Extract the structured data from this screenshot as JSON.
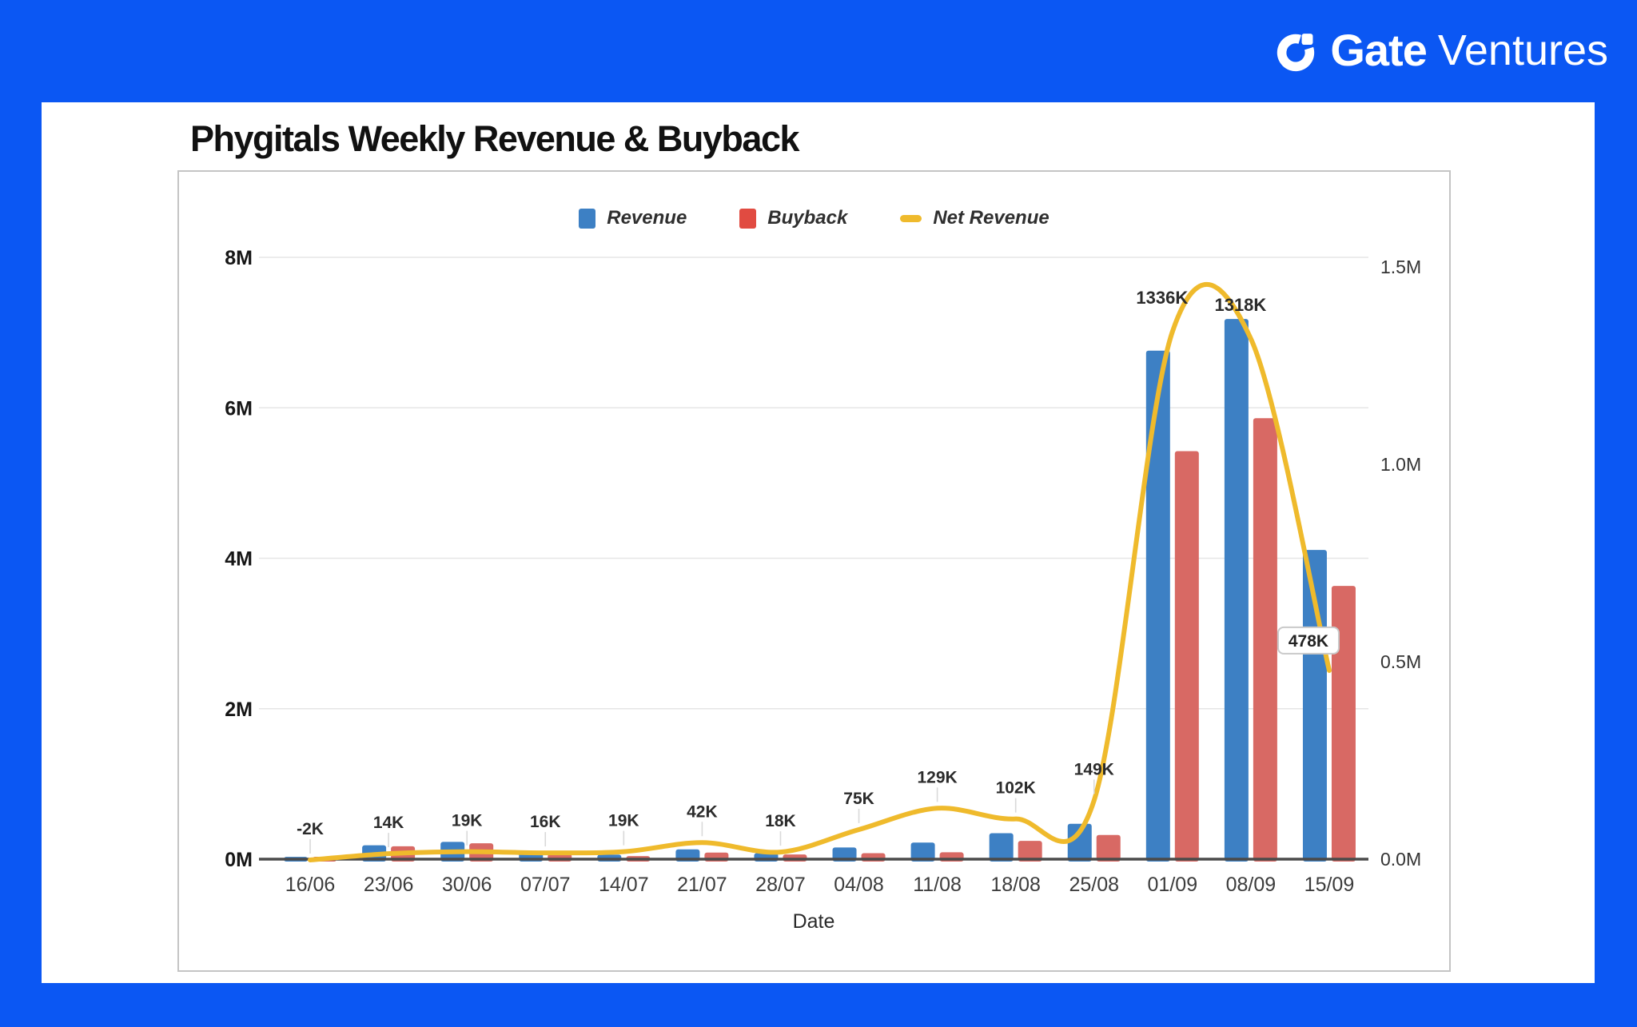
{
  "page": {
    "background": "#0b57f3",
    "card_background": "#ffffff"
  },
  "brand": {
    "name_bold": "Gate",
    "name_light": "Ventures"
  },
  "chart": {
    "title": "Phygitals Weekly Revenue & Buyback",
    "legend": [
      {
        "label": "Revenue",
        "color": "#3d80c4",
        "swatch": "square"
      },
      {
        "label": "Buyback",
        "color": "#e14b41",
        "swatch": "square"
      },
      {
        "label": "Net Revenue",
        "color": "#efba2c",
        "swatch": "line"
      }
    ]
  },
  "chart_data": {
    "type": "bar+line",
    "title": "Phygitals Weekly Revenue & Buyback",
    "xlabel": "Date",
    "legend_position": "top center",
    "grid": "horizontal only",
    "categories": [
      "16/06",
      "23/06",
      "30/06",
      "07/07",
      "14/07",
      "21/07",
      "28/07",
      "04/08",
      "11/08",
      "18/08",
      "25/08",
      "01/09",
      "08/09",
      "15/09"
    ],
    "series": [
      {
        "name": "Revenue",
        "type": "bar",
        "axis": "left",
        "color": "#3d80c4",
        "values_k": [
          30,
          185,
          230,
          85,
          60,
          130,
          80,
          155,
          220,
          345,
          470,
          6760,
          7180,
          4110
        ]
      },
      {
        "name": "Buyback",
        "type": "bar",
        "axis": "left",
        "color": "#d86964",
        "values_k": [
          32,
          171,
          211,
          69,
          41,
          88,
          62,
          80,
          91,
          243,
          321,
          5424,
          5862,
          3632
        ]
      },
      {
        "name": "Net Revenue",
        "type": "line",
        "axis": "right",
        "color": "#efba2c",
        "values_k": [
          -2,
          14,
          19,
          16,
          19,
          42,
          18,
          75,
          129,
          102,
          149,
          1336,
          1318,
          478
        ],
        "point_labels": [
          "-2K",
          "14K",
          "19K",
          "16K",
          "19K",
          "42K",
          "18K",
          "75K",
          "129K",
          "102K",
          "149K",
          "1336K",
          "1318K",
          "478K"
        ]
      }
    ],
    "left_axis": {
      "max_k": 8000,
      "ticks": [
        {
          "label": "0M",
          "value_k": 0
        },
        {
          "label": "2M",
          "value_k": 2000
        },
        {
          "label": "4M",
          "value_k": 4000
        },
        {
          "label": "6M",
          "value_k": 6000
        },
        {
          "label": "8M",
          "value_k": 8000
        }
      ]
    },
    "right_axis": {
      "max_k": 1500,
      "ticks": [
        {
          "label": "0.0M",
          "value_k": 0
        },
        {
          "label": "0.5M",
          "value_k": 500
        },
        {
          "label": "1.0M",
          "value_k": 1000
        },
        {
          "label": "1.5M",
          "value_k": 1500
        }
      ]
    }
  }
}
